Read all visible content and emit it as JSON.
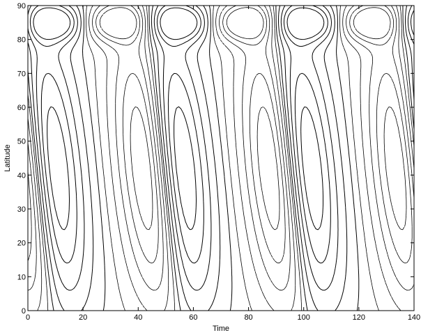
{
  "chart_data": {
    "type": "contour",
    "xlabel": "Time",
    "ylabel": "Latitude",
    "xlim": [
      0,
      140
    ],
    "ylim": [
      0,
      90
    ],
    "xticks": [
      0,
      20,
      40,
      60,
      80,
      100,
      120,
      140
    ],
    "yticks": [
      0,
      10,
      20,
      30,
      40,
      50,
      60,
      70,
      80,
      90
    ],
    "grid": false,
    "legend": "none",
    "line_color": "#000000",
    "positive_contours": "solid",
    "negative_contours": "dashed",
    "period": 46
  }
}
